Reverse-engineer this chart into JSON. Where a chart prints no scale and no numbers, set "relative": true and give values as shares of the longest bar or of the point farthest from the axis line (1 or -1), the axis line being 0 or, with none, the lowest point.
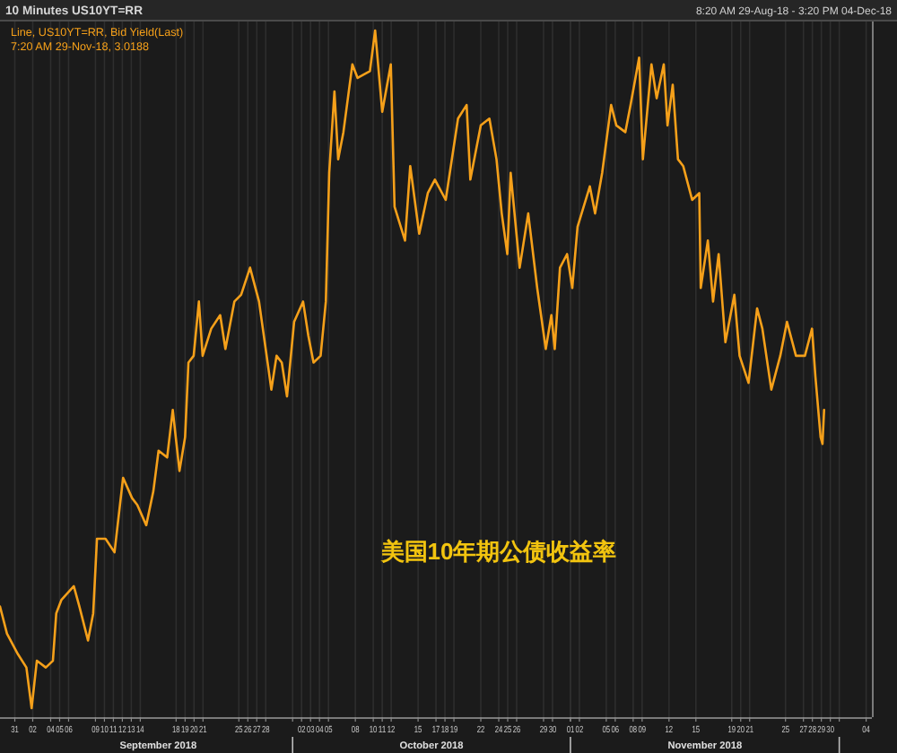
{
  "chart_data": {
    "type": "line",
    "title": "10 Minutes US10YT=RR",
    "subtitle": "8:20 AM 29-Aug-18 - 3:20 PM 04-Dec-18",
    "relative": true,
    "legend": "top left",
    "grid": "x",
    "xlim": [
      "2018-08-29T08:20",
      "2018-12-04T15:20"
    ],
    "xticks": [
      {
        "value": "2018-08-31",
        "label": "31"
      },
      {
        "value": "2018-09-02",
        "label": "02"
      },
      {
        "value": "2018-09-04",
        "label": "04"
      },
      {
        "value": "2018-09-05",
        "label": "05"
      },
      {
        "value": "2018-09-06",
        "label": "06"
      },
      {
        "value": "2018-09-09",
        "label": "09"
      },
      {
        "value": "2018-09-10",
        "label": "10"
      },
      {
        "value": "2018-09-11",
        "label": "11"
      },
      {
        "value": "2018-09-12",
        "label": "12"
      },
      {
        "value": "2018-09-13",
        "label": "13"
      },
      {
        "value": "2018-09-14",
        "label": "14"
      },
      {
        "value": "2018-09-18",
        "label": "18"
      },
      {
        "value": "2018-09-19",
        "label": "19"
      },
      {
        "value": "2018-09-20",
        "label": "20"
      },
      {
        "value": "2018-09-21",
        "label": "21"
      },
      {
        "value": "2018-09-25",
        "label": "25"
      },
      {
        "value": "2018-09-26",
        "label": "26"
      },
      {
        "value": "2018-09-27",
        "label": "27"
      },
      {
        "value": "2018-09-28",
        "label": "28"
      },
      {
        "value": "2018-10-01",
        "label": null
      },
      {
        "value": "2018-10-02",
        "label": "02"
      },
      {
        "value": "2018-10-03",
        "label": "03"
      },
      {
        "value": "2018-10-04",
        "label": "04"
      },
      {
        "value": "2018-10-05",
        "label": "05"
      },
      {
        "value": "2018-10-08",
        "label": "08"
      },
      {
        "value": "2018-10-10",
        "label": "10"
      },
      {
        "value": "2018-10-11",
        "label": "11"
      },
      {
        "value": "2018-10-12",
        "label": "12"
      },
      {
        "value": "2018-10-15",
        "label": "15"
      },
      {
        "value": "2018-10-17",
        "label": "17"
      },
      {
        "value": "2018-10-18",
        "label": "18"
      },
      {
        "value": "2018-10-19",
        "label": "19"
      },
      {
        "value": "2018-10-22",
        "label": "22"
      },
      {
        "value": "2018-10-24",
        "label": "24"
      },
      {
        "value": "2018-10-25",
        "label": "25"
      },
      {
        "value": "2018-10-26",
        "label": "26"
      },
      {
        "value": "2018-10-29",
        "label": "29"
      },
      {
        "value": "2018-10-30",
        "label": "30"
      },
      {
        "value": "2018-11-01",
        "label": null
      },
      {
        "value": "2018-11-01",
        "label": "01"
      },
      {
        "value": "2018-11-02",
        "label": "02"
      },
      {
        "value": "2018-11-05",
        "label": "05"
      },
      {
        "value": "2018-11-06",
        "label": "06"
      },
      {
        "value": "2018-11-08",
        "label": "08"
      },
      {
        "value": "2018-11-09",
        "label": "09"
      },
      {
        "value": "2018-11-12",
        "label": "12"
      },
      {
        "value": "2018-11-15",
        "label": "15"
      },
      {
        "value": "2018-11-19",
        "label": "19"
      },
      {
        "value": "2018-11-20",
        "label": "20"
      },
      {
        "value": "2018-11-21",
        "label": "21"
      },
      {
        "value": "2018-11-25",
        "label": "25"
      },
      {
        "value": "2018-11-27",
        "label": "27"
      },
      {
        "value": "2018-11-28",
        "label": "28"
      },
      {
        "value": "2018-11-29",
        "label": "29"
      },
      {
        "value": "2018-11-30",
        "label": "30"
      },
      {
        "value": "2018-12-01",
        "label": null
      },
      {
        "value": "2018-12-04",
        "label": "04"
      }
    ],
    "series": [
      {
        "name": "Line, US10YT=RR, Bid Yield(Last)",
        "color": "#f5a01a",
        "x": [
          "2018-08-29T08:20",
          "2018-08-30T03:00",
          "2018-08-31T08:00",
          "2018-09-01T07:00",
          "2018-09-01T21:00",
          "2018-09-02T11:00",
          "2018-09-03T11:00",
          "2018-09-04T06:00",
          "2018-09-04T15:00",
          "2018-09-05T05:00",
          "2018-09-06T14:00",
          "2018-09-07T05:00",
          "2018-09-08T04:00",
          "2018-09-08T18:00",
          "2018-09-09T04:00",
          "2018-09-10T03:00",
          "2018-09-11T03:00",
          "2018-09-12T02:00",
          "2018-09-13T02:00",
          "2018-09-13T16:00",
          "2018-09-14T16:00",
          "2018-09-15T11:00",
          "2018-09-16T01:00",
          "2018-09-17T00:00",
          "2018-09-17T15:00",
          "2018-09-18T09:00",
          "2018-09-19T00:00",
          "2018-09-19T09:00",
          "2018-09-19T23:00",
          "2018-09-20T13:00",
          "2018-09-20T23:00",
          "2018-09-21T22:00",
          "2018-09-22T22:00",
          "2018-09-23T12:00",
          "2018-09-24T12:00",
          "2018-09-25T06:00",
          "2018-09-26T06:00",
          "2018-09-27T06:00",
          "2018-09-28T05:00",
          "2018-09-28T15:00",
          "2018-09-29T05:00",
          "2018-09-29T19:00",
          "2018-09-30T09:00",
          "2018-10-01T04:00",
          "2018-10-02T04:00",
          "2018-10-02T18:00",
          "2018-10-03T08:00",
          "2018-10-04T03:00",
          "2018-10-04T17:00",
          "2018-10-05T02:00",
          "2018-10-05T16:00",
          "2018-10-06T02:00",
          "2018-10-06T16:00",
          "2018-10-07T16:00",
          "2018-10-08T06:00",
          "2018-10-09T15:00",
          "2018-10-10T05:00",
          "2018-10-11T00:00",
          "2018-10-11T23:00",
          "2018-10-12T09:00",
          "2018-10-13T13:00",
          "2018-10-14T03:00",
          "2018-10-15T03:00",
          "2018-10-16T02:00",
          "2018-10-16T21:00",
          "2018-10-18T02:00",
          "2018-10-19T11:00",
          "2018-10-20T10:00",
          "2018-10-20T20:00",
          "2018-10-22T00:00",
          "2018-10-22T23:00",
          "2018-10-23T18:00",
          "2018-10-24T08:00",
          "2018-10-24T23:00",
          "2018-10-25T08:00",
          "2018-10-26T08:00",
          "2018-10-27T07:00",
          "2018-10-28T07:00",
          "2018-10-29T06:00",
          "2018-10-29T21:00",
          "2018-10-30T06:00",
          "2018-10-30T20:00",
          "2018-10-31T15:00",
          "2018-11-01T05:00",
          "2018-11-01T19:00",
          "2018-11-03T04:00",
          "2018-11-03T18:00",
          "2018-11-04T13:00",
          "2018-11-05T13:00",
          "2018-11-06T03:00",
          "2018-11-07T03:00",
          "2018-11-07T17:00",
          "2018-11-08T16:00",
          "2018-11-09T02:00",
          "2018-11-10T01:00",
          "2018-11-10T15:00",
          "2018-11-11T10:00",
          "2018-11-11T20:00",
          "2018-11-12T10:00",
          "2018-11-13T00:00",
          "2018-11-13T14:00",
          "2018-11-14T14:00",
          "2018-11-15T09:00",
          "2018-11-15T13:00",
          "2018-11-16T08:00",
          "2018-11-16T22:00",
          "2018-11-17T13:00",
          "2018-11-18T07:00",
          "2018-11-19T07:00",
          "2018-11-19T21:00",
          "2018-11-20T21:00",
          "2018-11-21T20:00",
          "2018-11-22T10:00",
          "2018-11-23T10:00",
          "2018-11-24T10:00",
          "2018-11-25T04:00",
          "2018-11-26T04:00",
          "2018-11-27T04:00",
          "2018-11-27T23:00",
          "2018-11-28T08:00",
          "2018-11-28T22:00",
          "2018-11-29T03:00",
          "2018-11-29T07:20"
        ],
        "values": [
          0.15,
          0.11,
          0.08,
          0.06,
          0,
          0.07,
          0.06,
          0.07,
          0.14,
          0.16,
          0.18,
          0.15,
          0.1,
          0.14,
          0.25,
          0.25,
          0.23,
          0.34,
          0.31,
          0.3,
          0.27,
          0.32,
          0.38,
          0.37,
          0.44,
          0.35,
          0.4,
          0.51,
          0.52,
          0.6,
          0.52,
          0.56,
          0.58,
          0.53,
          0.6,
          0.61,
          0.65,
          0.6,
          0.51,
          0.47,
          0.52,
          0.51,
          0.46,
          0.57,
          0.6,
          0.55,
          0.51,
          0.52,
          0.6,
          0.79,
          0.91,
          0.81,
          0.85,
          0.95,
          0.93,
          0.94,
          1,
          0.88,
          0.95,
          0.74,
          0.69,
          0.8,
          0.7,
          0.76,
          0.78,
          0.75,
          0.87,
          0.89,
          0.78,
          0.86,
          0.87,
          0.81,
          0.73,
          0.67,
          0.79,
          0.65,
          0.73,
          0.62,
          0.53,
          0.58,
          0.53,
          0.65,
          0.67,
          0.62,
          0.71,
          0.77,
          0.73,
          0.79,
          0.89,
          0.86,
          0.85,
          0.89,
          0.96,
          0.81,
          0.95,
          0.9,
          0.95,
          0.86,
          0.92,
          0.81,
          0.8,
          0.75,
          0.76,
          0.62,
          0.69,
          0.6,
          0.67,
          0.54,
          0.61,
          0.52,
          0.48,
          0.59,
          0.56,
          0.47,
          0.52,
          0.57,
          0.52,
          0.52,
          0.56,
          0.49,
          0.4,
          0.39,
          0.44
        ]
      }
    ],
    "annotations": [
      "7:20 AM 29-Nov-18, 3.0188",
      "美国10年期公债收益率",
      "September 2018",
      "October 2018",
      "November 2018"
    ]
  }
}
